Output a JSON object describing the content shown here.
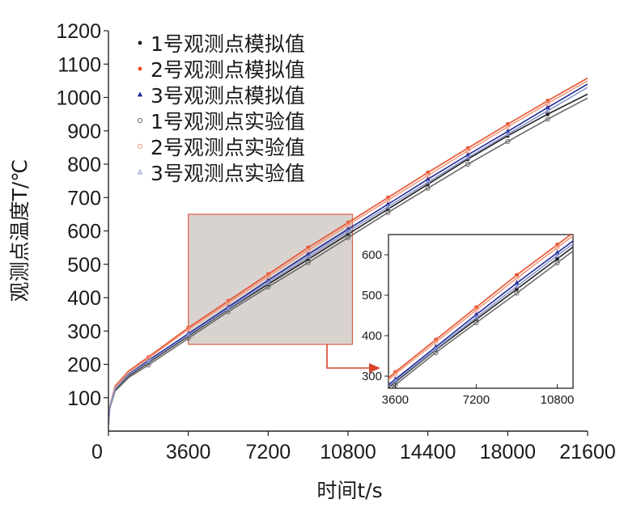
{
  "chart_data": {
    "type": "line",
    "xlabel": "时间t/s",
    "ylabel": "观测点温度T/℃",
    "xlim": [
      0,
      21600
    ],
    "ylim": [
      0,
      1200
    ],
    "x_ticks": [
      "0",
      "3600",
      "7200",
      "10800",
      "14400",
      "18000",
      "21600"
    ],
    "y_ticks": [
      "100",
      "200",
      "300",
      "400",
      "500",
      "600",
      "700",
      "800",
      "900",
      "1000",
      "1100",
      "1200"
    ],
    "grid": false,
    "legend_position": "top-left",
    "series": [
      {
        "name": "1号观测点模拟值",
        "kind": "simulated",
        "color": "#222222",
        "marker": "dot",
        "x": [
          0,
          60,
          300,
          900,
          1800,
          3600,
          5400,
          7200,
          9000,
          10800,
          12600,
          14400,
          16200,
          18000,
          19800,
          21600
        ],
        "y": [
          20,
          70,
          125,
          165,
          205,
          285,
          365,
          440,
          515,
          590,
          665,
          740,
          815,
          885,
          950,
          1010
        ]
      },
      {
        "name": "2号观测点模拟值",
        "kind": "simulated",
        "color": "#e8502a",
        "marker": "dot",
        "x": [
          0,
          60,
          300,
          900,
          1800,
          3600,
          5400,
          7200,
          9000,
          10800,
          12600,
          14400,
          16200,
          18000,
          19800,
          21600
        ],
        "y": [
          20,
          75,
          135,
          180,
          222,
          310,
          390,
          470,
          550,
          625,
          700,
          775,
          848,
          920,
          990,
          1058
        ]
      },
      {
        "name": "3号观测点模拟值",
        "kind": "simulated",
        "color": "#1f2b99",
        "marker": "triangle",
        "x": [
          0,
          60,
          300,
          900,
          1800,
          3600,
          5400,
          7200,
          9000,
          10800,
          12600,
          14400,
          16200,
          18000,
          19800,
          21600
        ],
        "y": [
          20,
          72,
          130,
          170,
          212,
          292,
          372,
          452,
          530,
          605,
          680,
          755,
          828,
          898,
          970,
          1040
        ]
      },
      {
        "name": "1号观测点实验值",
        "kind": "experimental",
        "color": "#6a6a6a",
        "marker": "circle",
        "x": [
          0,
          60,
          300,
          900,
          1800,
          3600,
          5400,
          7200,
          9000,
          10800,
          12600,
          14400,
          16200,
          18000,
          19800,
          21600
        ],
        "y": [
          20,
          68,
          120,
          160,
          198,
          278,
          358,
          432,
          505,
          580,
          655,
          728,
          800,
          868,
          935,
          998
        ]
      },
      {
        "name": "2号观测点实验值",
        "kind": "experimental",
        "color": "#f09a80",
        "marker": "circle",
        "x": [
          0,
          60,
          300,
          900,
          1800,
          3600,
          5400,
          7200,
          9000,
          10800,
          12600,
          14400,
          16200,
          18000,
          19800,
          21600
        ],
        "y": [
          20,
          74,
          132,
          176,
          218,
          305,
          384,
          463,
          542,
          618,
          692,
          766,
          840,
          912,
          982,
          1050
        ]
      },
      {
        "name": "3号观测点实验值",
        "kind": "experimental",
        "color": "#8c98cf",
        "marker": "triangle",
        "x": [
          0,
          60,
          300,
          900,
          1800,
          3600,
          5400,
          7200,
          9000,
          10800,
          12600,
          14400,
          16200,
          18000,
          19800,
          21600
        ],
        "y": [
          20,
          71,
          127,
          168,
          208,
          288,
          367,
          445,
          522,
          598,
          672,
          746,
          820,
          890,
          960,
          1030
        ]
      }
    ],
    "inset": {
      "xlim": [
        3300,
        11500
      ],
      "ylim": [
        270,
        650
      ],
      "x_ticks": [
        "3600",
        "7200",
        "10800"
      ],
      "y_ticks": [
        "300",
        "400",
        "500",
        "600"
      ],
      "highlight_region": {
        "x": [
          3600,
          11000
        ],
        "y": [
          260,
          650
        ]
      }
    },
    "colors": {
      "highlight_fill": "#d9d3d0",
      "highlight_stroke": "#d9624a",
      "connector": "#d9442a"
    }
  }
}
